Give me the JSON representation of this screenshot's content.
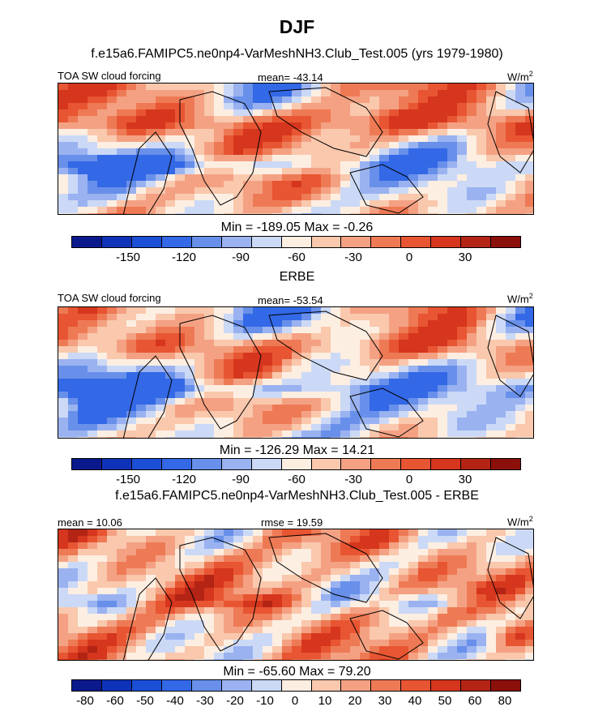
{
  "figure": {
    "title": "DJF",
    "panel1_header": "f.e15a6.FAMIPC5.ne0np4-VarMeshNH3.Club_Test.005 (yrs 1979-1980)",
    "panel2_header": "ERBE",
    "panel3_header": "f.e15a6.FAMIPC5.ne0np4-VarMeshNH3.Club_Test.005 - ERBE",
    "units_base": "W/m",
    "units_exp": "2"
  },
  "colors": {
    "palette": [
      "#0a1a8c",
      "#0f33b8",
      "#1a4fd6",
      "#3368e6",
      "#6890ea",
      "#9ab2f0",
      "#cbd9f6",
      "#fdeee2",
      "#f9c8ad",
      "#f4a183",
      "#ee7a55",
      "#e85532",
      "#d5361d",
      "#b32415",
      "#8b0f0a"
    ]
  },
  "chart_data": [
    {
      "type": "heatmap",
      "subtitle_left": "TOA SW cloud forcing",
      "stat_center": "mean= -43.14",
      "minmax": "Min = -189.05 Max =  -0.26",
      "stats": {
        "mean": -43.14,
        "min": -189.05,
        "max": -0.26
      },
      "colorbar_levels": [
        -180,
        -165,
        -150,
        -135,
        -120,
        -105,
        -90,
        -75,
        -60,
        -45,
        -30,
        -15,
        0,
        15,
        30
      ],
      "tick_labels": [
        "-150",
        "-120",
        "-90",
        "-60",
        "-30",
        "0",
        "30"
      ],
      "units": "W/m^2"
    },
    {
      "type": "heatmap",
      "subtitle_left": "TOA SW cloud forcing",
      "stat_center": "mean= -53.54",
      "minmax": "Min = -126.29 Max =  14.21",
      "stats": {
        "mean": -53.54,
        "min": -126.29,
        "max": 14.21
      },
      "colorbar_levels": [
        -180,
        -165,
        -150,
        -135,
        -120,
        -105,
        -90,
        -75,
        -60,
        -45,
        -30,
        -15,
        0,
        15,
        30
      ],
      "tick_labels": [
        "-150",
        "-120",
        "-90",
        "-60",
        "-30",
        "0",
        "30"
      ],
      "units": "W/m^2"
    },
    {
      "type": "heatmap",
      "subtitle_left": "mean =  10.06",
      "stat_center": "rmse =  19.59",
      "minmax": "Min = -65.60 Max =  79.20",
      "stats": {
        "mean": 10.06,
        "rmse": 19.59,
        "min": -65.6,
        "max": 79.2
      },
      "colorbar_levels": [
        -80,
        -60,
        -50,
        -40,
        -30,
        -20,
        -10,
        0,
        10,
        20,
        30,
        40,
        50,
        60,
        80
      ],
      "tick_labels": [
        "-80",
        "-60",
        "-50",
        "-40",
        "-30",
        "-20",
        "-10",
        "0",
        "10",
        "20",
        "30",
        "40",
        "50",
        "60",
        "80"
      ],
      "units": "W/m^2"
    }
  ]
}
